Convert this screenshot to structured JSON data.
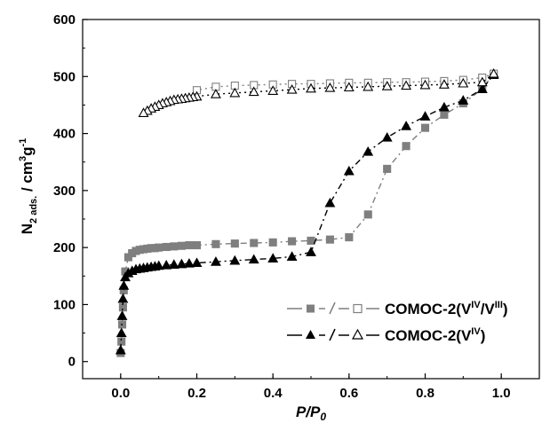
{
  "chart_data": {
    "type": "scatter",
    "xlabel": {
      "main": "P/P",
      "sub": "0"
    },
    "ylabel": {
      "main": "N",
      "sub1": "2 ads.",
      "mid": " / cm",
      "sup1": "3",
      "mid2": "g",
      "sup2": "-1"
    },
    "xlim": [
      -0.1,
      1.1
    ],
    "ylim": [
      -30,
      600
    ],
    "xticks": [
      0.0,
      0.2,
      0.4,
      0.6,
      0.8,
      1.0
    ],
    "xtick_labels": [
      "0.0",
      "0.2",
      "0.4",
      "0.6",
      "0.8",
      "1.0"
    ],
    "yticks": [
      0,
      100,
      200,
      300,
      400,
      500,
      600
    ],
    "ytick_labels": [
      "0",
      "100",
      "200",
      "300",
      "400",
      "500",
      "600"
    ],
    "legend_position": "lower-right",
    "legend": [
      {
        "label_main": "COMOC-2(V",
        "sup_a": "IV",
        "slash": "/V",
        "sup_b": "III",
        "close": ")",
        "color": "#7f7f7f"
      },
      {
        "label_main": "COMOC-2(V",
        "sup_a": "IV",
        "close": ")",
        "color": "#000000"
      }
    ],
    "series": [
      {
        "marker": "square",
        "filled": true,
        "color": "#7f7f7f",
        "dash": "7,4,2,4",
        "x": [
          0.0,
          0.002,
          0.004,
          0.006,
          0.008,
          0.012,
          0.02,
          0.03,
          0.04,
          0.05,
          0.06,
          0.07,
          0.08,
          0.09,
          0.1,
          0.12,
          0.14,
          0.16,
          0.18,
          0.2,
          0.25,
          0.3,
          0.35,
          0.4,
          0.45,
          0.5,
          0.55,
          0.6,
          0.65,
          0.7,
          0.75,
          0.8,
          0.85,
          0.9,
          0.95,
          0.98
        ],
        "y": [
          15,
          35,
          65,
          95,
          125,
          158,
          183,
          190,
          194,
          196,
          197,
          198,
          199,
          199,
          200,
          201,
          202,
          203,
          204,
          204,
          206,
          207,
          208,
          209,
          211,
          212,
          214,
          218,
          258,
          338,
          378,
          410,
          433,
          453,
          478,
          505
        ]
      },
      {
        "marker": "square",
        "filled": false,
        "color": "#7f7f7f",
        "dash": "2,4",
        "x": [
          0.98,
          0.95,
          0.9,
          0.85,
          0.8,
          0.75,
          0.7,
          0.65,
          0.6,
          0.55,
          0.5,
          0.45,
          0.4,
          0.35,
          0.3,
          0.25,
          0.2
        ],
        "y": [
          505,
          498,
          494,
          492,
          491,
          490,
          490,
          489,
          489,
          488,
          487,
          487,
          486,
          485,
          484,
          482,
          476
        ]
      },
      {
        "marker": "triangle",
        "filled": true,
        "color": "#000000",
        "dash": "7,4,2,4",
        "x": [
          0.0,
          0.002,
          0.004,
          0.006,
          0.008,
          0.012,
          0.02,
          0.03,
          0.04,
          0.05,
          0.06,
          0.07,
          0.08,
          0.09,
          0.1,
          0.12,
          0.14,
          0.16,
          0.18,
          0.2,
          0.25,
          0.3,
          0.35,
          0.4,
          0.45,
          0.5,
          0.55,
          0.6,
          0.65,
          0.7,
          0.75,
          0.8,
          0.85,
          0.9,
          0.95,
          0.98
        ],
        "y": [
          20,
          50,
          80,
          110,
          133,
          148,
          155,
          159,
          162,
          163,
          164,
          165,
          166,
          167,
          168,
          169,
          170,
          171,
          172,
          173,
          175,
          177,
          179,
          181,
          184,
          192,
          278,
          334,
          368,
          393,
          413,
          430,
          446,
          458,
          478,
          503
        ]
      },
      {
        "marker": "triangle",
        "filled": false,
        "color": "#000000",
        "dash": "2,4",
        "x": [
          0.98,
          0.95,
          0.9,
          0.85,
          0.8,
          0.75,
          0.7,
          0.65,
          0.6,
          0.55,
          0.5,
          0.45,
          0.4,
          0.35,
          0.3,
          0.25,
          0.2,
          0.19,
          0.18,
          0.17,
          0.16,
          0.15,
          0.14,
          0.13,
          0.12,
          0.11,
          0.1,
          0.09,
          0.08,
          0.07,
          0.06
        ],
        "y": [
          505,
          490,
          488,
          486,
          485,
          484,
          483,
          482,
          481,
          480,
          479,
          477,
          475,
          473,
          471,
          469,
          465,
          464,
          463,
          462,
          461,
          460,
          459,
          457,
          455,
          453,
          450,
          447,
          444,
          440,
          436
        ]
      }
    ]
  }
}
